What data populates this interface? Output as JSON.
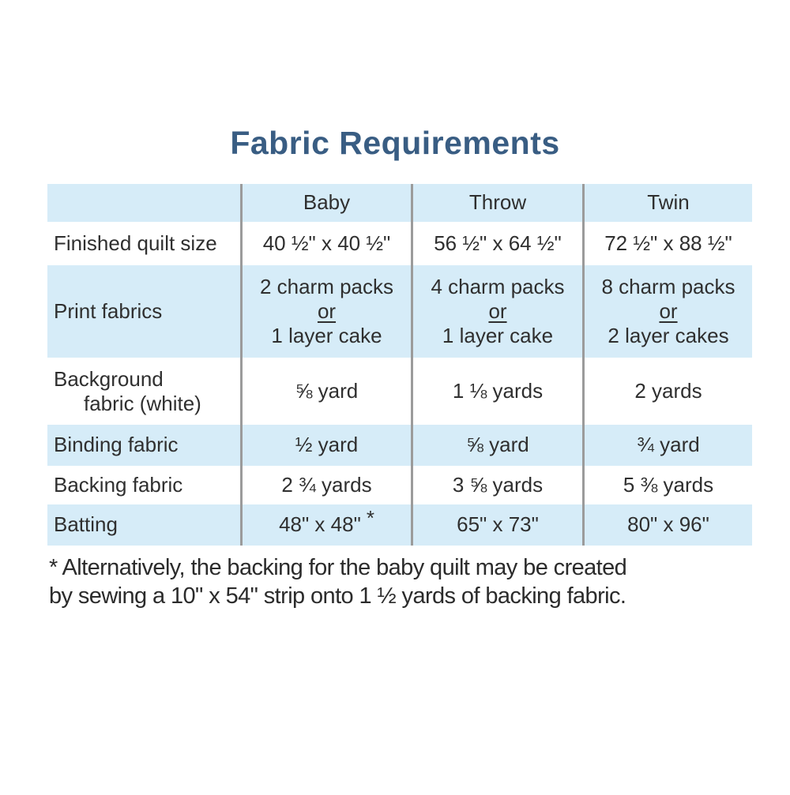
{
  "title": "Fabric Requirements",
  "colors": {
    "title_blue": "#395d83",
    "row_blue": "#d6ecf8",
    "divider_gray": "#9b9b9b",
    "text_dark": "#2f2f2f"
  },
  "table": {
    "header": {
      "label": "",
      "baby": "Baby",
      "throw": "Throw",
      "twin": "Twin"
    },
    "rows": [
      {
        "label": "Finished quilt size",
        "baby": "40 ½\" x 40 ½\"",
        "throw": "56 ½\" x 64 ½\"",
        "twin": "72 ½\" x 88 ½\""
      },
      {
        "label": "Print fabrics",
        "baby": {
          "l1": "2 charm packs",
          "or": "or",
          "l2": "1 layer cake"
        },
        "throw": {
          "l1": "4 charm packs",
          "or": "or",
          "l2": "1 layer cake"
        },
        "twin": {
          "l1": "8 charm packs",
          "or": "or",
          "l2": "2 layer cakes"
        }
      },
      {
        "label_line1": "Background",
        "label_line2": "fabric (white)",
        "baby": "⅝ yard",
        "throw": "1 ⅛ yards",
        "twin": "2 yards"
      },
      {
        "label": "Binding fabric",
        "baby": "½ yard",
        "throw": "⅝ yard",
        "twin": "¾ yard"
      },
      {
        "label": "Backing fabric",
        "baby": "2 ¾ yards",
        "throw": "3 ⅝ yards",
        "twin": "5 ⅜ yards"
      },
      {
        "label": "Batting",
        "baby": "48\" x 48\"",
        "baby_note": "*",
        "throw": "65\" x 73\"",
        "twin": "80\" x 96\""
      }
    ]
  },
  "footnote": {
    "line1": "* Alternatively, the backing for the baby quilt may be created",
    "line2": "by sewing a 10\" x 54\" strip onto  1 ½ yards of backing fabric."
  }
}
